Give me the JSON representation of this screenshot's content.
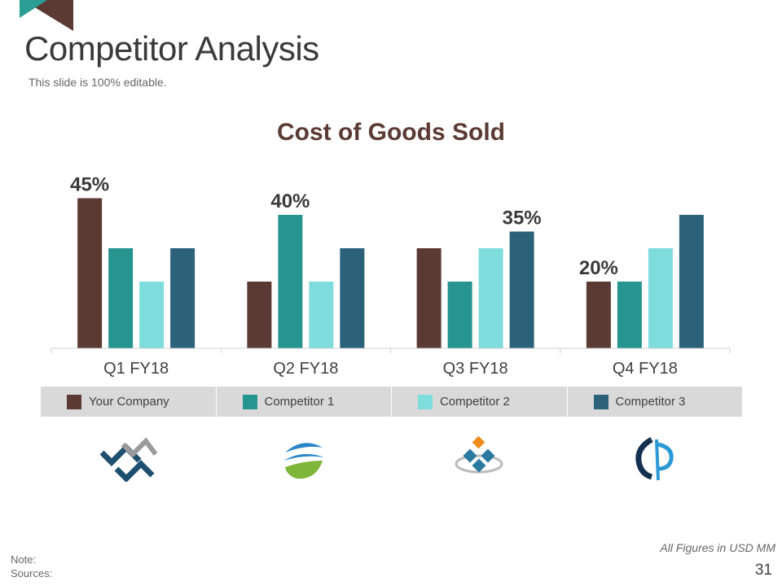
{
  "slide": {
    "title": "Competitor Analysis",
    "subtitle": "This slide is 100% editable.",
    "page_number": "31"
  },
  "footer": {
    "note_label": "Note:",
    "sources_label": "Sources:",
    "figures_note": "All Figures in USD MM"
  },
  "colors": {
    "your_company": "#5b3a33",
    "competitor_1": "#26948f",
    "competitor_2": "#7fdcdc",
    "competitor_3": "#2c6279",
    "accent_teal": "#2a9d95",
    "accent_brown": "#5b3a33"
  },
  "chart_data": {
    "type": "bar",
    "title": "Cost of Goods Sold",
    "xlabel": "",
    "ylabel": "",
    "ylim": [
      0,
      50
    ],
    "grid": false,
    "categories": [
      "Q1 FY18",
      "Q2 FY18",
      "Q3 FY18",
      "Q4 FY18"
    ],
    "series": [
      {
        "name": "Your Company",
        "values": [
          45,
          20,
          30,
          20
        ]
      },
      {
        "name": "Competitor 1",
        "values": [
          30,
          40,
          20,
          20
        ]
      },
      {
        "name": "Competitor 2",
        "values": [
          20,
          20,
          30,
          30
        ]
      },
      {
        "name": "Competitor 3",
        "values": [
          30,
          30,
          35,
          40
        ]
      }
    ],
    "annotations": [
      {
        "category": 0,
        "series": 0,
        "text": "45%"
      },
      {
        "category": 1,
        "series": 1,
        "text": "40%"
      },
      {
        "category": 2,
        "series": 3,
        "text": "35%"
      },
      {
        "category": 3,
        "series": 0,
        "text": "20%"
      }
    ]
  },
  "logos": [
    {
      "name": "chevron-arrows-logo"
    },
    {
      "name": "swoosh-globe-logo"
    },
    {
      "name": "diamond-tiles-logo"
    },
    {
      "name": "ring-p-logo"
    }
  ]
}
